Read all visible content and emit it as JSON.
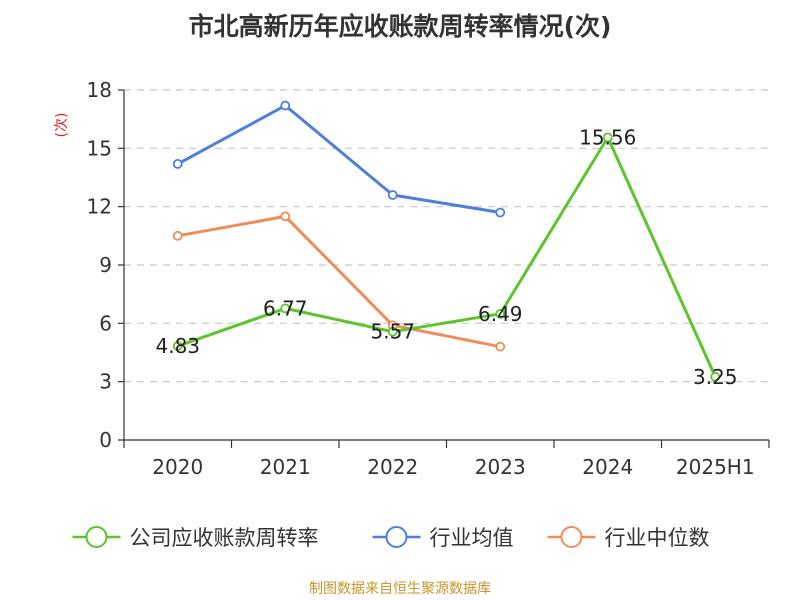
{
  "chart_data": {
    "type": "line",
    "title": "市北高新历年应收账款周转率情况(次)",
    "ylabel": "(次)",
    "xlabel": "",
    "categories": [
      "2020",
      "2021",
      "2022",
      "2023",
      "2024",
      "2025H1"
    ],
    "ylim": [
      0,
      18
    ],
    "yticks": [
      0,
      3,
      6,
      9,
      12,
      15,
      18
    ],
    "grid": true,
    "legend_position": "bottom",
    "series": [
      {
        "name": "公司应收账款周转率",
        "color": "#5cc42d",
        "values": [
          4.83,
          6.77,
          5.57,
          6.49,
          15.56,
          3.25
        ],
        "labels": [
          "4.83",
          "6.77",
          "5.57",
          "6.49",
          "15.56",
          "3.25"
        ]
      },
      {
        "name": "行业均值",
        "color": "#4e7fdc",
        "values": [
          14.2,
          17.2,
          12.6,
          11.7,
          null,
          null
        ]
      },
      {
        "name": "行业中位数",
        "color": "#f08c5a",
        "values": [
          10.5,
          11.5,
          5.9,
          4.8,
          null,
          null
        ]
      }
    ]
  },
  "footer": {
    "source": "制图数据来自恒生聚源数据库"
  }
}
